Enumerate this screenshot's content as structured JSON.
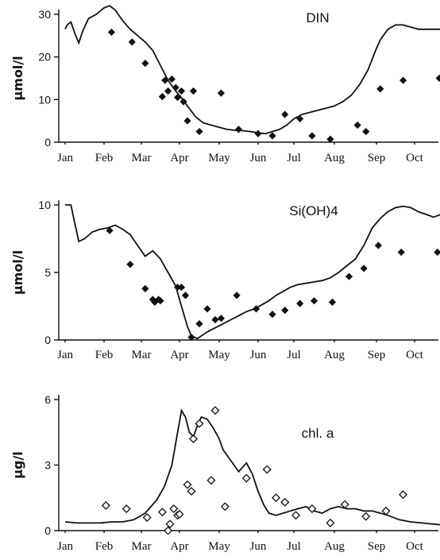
{
  "chart_data": [
    {
      "type": "line",
      "title": "DIN",
      "ylabel": "µmol/l",
      "ylim": [
        0,
        30
      ],
      "yticks": [
        0,
        10,
        20,
        30
      ],
      "months": [
        "Jan",
        "Feb",
        "Mar",
        "Apr",
        "May",
        "Jun",
        "Jul",
        "Aug",
        "Sep",
        "Oct"
      ],
      "xlim": [
        0,
        10.2
      ],
      "marker": "filled-diamond",
      "series": [
        {
          "kind": "model",
          "x": [
            0,
            0.05,
            0.15,
            0.25,
            0.35,
            0.45,
            0.6,
            0.8,
            1.0,
            1.15,
            1.3,
            1.5,
            1.7,
            1.9,
            2.1,
            2.3,
            2.5,
            2.7,
            2.9,
            3.0,
            3.2,
            3.4,
            3.6,
            3.8,
            4.0,
            4.2,
            4.4,
            4.6,
            4.8,
            5.0,
            5.2,
            5.4,
            5.6,
            5.8,
            6.0,
            6.2,
            6.4,
            6.6,
            6.8,
            7.0,
            7.2,
            7.4,
            7.6,
            7.8,
            8.0,
            8.1,
            8.3,
            8.5,
            8.7,
            8.9,
            9.1,
            9.3,
            9.5,
            9.7,
            9.9,
            10.05,
            10.2
          ],
          "y": [
            26.5,
            27.5,
            28.2,
            25.5,
            23.3,
            26.0,
            29.0,
            30.0,
            31.5,
            32.0,
            31.0,
            28.5,
            26.5,
            25.0,
            23.5,
            21.5,
            18.0,
            14.5,
            12.0,
            11.0,
            8.5,
            6.0,
            4.5,
            4.0,
            3.5,
            3.0,
            2.8,
            2.7,
            2.5,
            2.2,
            2.0,
            2.5,
            3.0,
            4.0,
            5.5,
            6.5,
            7.0,
            7.5,
            8.0,
            8.5,
            9.5,
            11.0,
            13.5,
            17.0,
            22.0,
            24.0,
            26.5,
            27.5,
            27.5,
            27.0,
            26.5,
            26.5,
            26.5,
            26.5,
            26.0,
            26.5,
            25.0
          ]
        },
        {
          "kind": "observed",
          "x": [
            1.2,
            1.75,
            2.1,
            2.55,
            2.62,
            2.7,
            2.8,
            2.9,
            2.95,
            3.05,
            3.1,
            3.2,
            3.35,
            3.5,
            4.05,
            4.5,
            5.0,
            5.4,
            5.75,
            6.15,
            6.45,
            6.9,
            7.55,
            7.75,
            8.1,
            8.7,
            9.65
          ],
          "y": [
            25.8,
            23.5,
            18.5,
            10.7,
            14.5,
            12.0,
            14.8,
            12.8,
            10.5,
            12.0,
            9.5,
            5.0,
            12.0,
            2.5,
            11.5,
            3.0,
            2.0,
            1.5,
            6.5,
            5.5,
            1.5,
            0.7,
            4.0,
            2.5,
            12.5,
            14.5,
            15.0
          ]
        }
      ]
    },
    {
      "type": "line",
      "title": "Si(OH)4",
      "ylabel": "µmol/l",
      "ylim": [
        0,
        10
      ],
      "yticks": [
        0,
        5,
        10
      ],
      "months": [
        "Jan",
        "Feb",
        "Mar",
        "Apr",
        "May",
        "Jun",
        "Jul",
        "Aug",
        "Sep",
        "Oct"
      ],
      "xlim": [
        0,
        10.2
      ],
      "marker": "filled-diamond",
      "series": [
        {
          "kind": "model",
          "x": [
            0,
            0.05,
            0.1,
            0.15,
            0.2,
            0.35,
            0.5,
            0.7,
            0.9,
            1.1,
            1.3,
            1.5,
            1.7,
            1.9,
            2.1,
            2.3,
            2.5,
            2.7,
            2.9,
            3.0,
            3.1,
            3.2,
            3.3,
            3.45,
            3.55,
            3.7,
            3.9,
            4.1,
            4.3,
            4.5,
            4.7,
            4.9,
            5.1,
            5.3,
            5.5,
            5.7,
            5.9,
            6.1,
            6.3,
            6.5,
            6.7,
            6.9,
            7.1,
            7.3,
            7.5,
            7.7,
            7.9,
            8.1,
            8.3,
            8.5,
            8.7,
            8.9,
            9.1,
            9.3,
            9.5,
            9.7,
            9.9,
            10.05,
            10.2
          ],
          "y": [
            10.0,
            10.0,
            10.0,
            10.0,
            9.3,
            7.3,
            7.5,
            8.0,
            8.2,
            8.3,
            8.5,
            8.2,
            7.8,
            7.0,
            6.2,
            6.6,
            6.0,
            5.0,
            4.0,
            3.0,
            2.0,
            1.0,
            0.3,
            0.1,
            0.3,
            0.6,
            0.9,
            1.2,
            1.5,
            1.8,
            2.1,
            2.3,
            2.6,
            2.9,
            3.3,
            3.6,
            3.9,
            4.1,
            4.2,
            4.3,
            4.4,
            4.6,
            5.0,
            5.5,
            6.0,
            7.0,
            8.3,
            9.0,
            9.5,
            9.8,
            9.9,
            9.8,
            9.5,
            9.3,
            9.1,
            9.3,
            9.3,
            9.5,
            9.8
          ]
        },
        {
          "kind": "observed",
          "x": [
            1.15,
            1.7,
            2.1,
            2.3,
            2.35,
            2.45,
            2.5,
            2.95,
            3.05,
            3.15,
            3.3,
            3.5,
            3.7,
            3.9,
            4.05,
            4.45,
            4.95,
            5.4,
            5.75,
            6.15,
            6.5,
            6.95,
            7.35,
            7.7,
            8.05,
            8.65,
            9.6
          ],
          "y": [
            8.1,
            5.6,
            3.8,
            3.0,
            2.8,
            3.0,
            2.9,
            3.9,
            3.9,
            3.3,
            0.2,
            1.2,
            2.3,
            1.5,
            1.6,
            3.3,
            2.3,
            1.9,
            2.2,
            2.7,
            2.9,
            2.8,
            4.7,
            5.3,
            7.0,
            6.5,
            6.5
          ]
        }
      ]
    },
    {
      "type": "line",
      "title": "chl. a",
      "ylabel": "µg/l",
      "ylim": [
        0,
        6
      ],
      "yticks": [
        0,
        3,
        6
      ],
      "months": [
        "Jan",
        "Feb",
        "Mar",
        "Apr",
        "May",
        "Jun",
        "Jul",
        "Aug",
        "Sep",
        "Oct"
      ],
      "xlim": [
        0,
        10.2
      ],
      "marker": "open-diamond",
      "series": [
        {
          "kind": "model",
          "x": [
            0,
            0.3,
            0.6,
            0.9,
            1.2,
            1.5,
            1.8,
            2.1,
            2.4,
            2.6,
            2.8,
            2.95,
            3.05,
            3.15,
            3.25,
            3.35,
            3.45,
            3.55,
            3.7,
            3.85,
            4.0,
            4.1,
            4.3,
            4.5,
            4.7,
            4.85,
            5.0,
            5.15,
            5.3,
            5.5,
            5.7,
            5.9,
            6.1,
            6.3,
            6.5,
            6.7,
            6.9,
            7.1,
            7.3,
            7.5,
            7.7,
            7.9,
            8.1,
            8.3,
            8.6,
            8.9,
            9.2,
            9.5,
            9.8,
            10.2
          ],
          "y": [
            0.4,
            0.35,
            0.35,
            0.35,
            0.4,
            0.4,
            0.5,
            0.8,
            1.4,
            2.0,
            3.0,
            4.5,
            5.5,
            5.2,
            4.5,
            4.3,
            4.8,
            5.2,
            5.1,
            4.7,
            4.2,
            3.7,
            3.2,
            2.7,
            3.1,
            2.6,
            1.8,
            1.2,
            0.8,
            0.7,
            0.8,
            0.9,
            1.0,
            1.1,
            0.9,
            0.8,
            1.0,
            1.1,
            1.0,
            1.0,
            0.9,
            0.9,
            0.8,
            0.7,
            0.5,
            0.4,
            0.35,
            0.3,
            0.25,
            0.2
          ]
        },
        {
          "kind": "observed",
          "x": [
            1.05,
            1.6,
            2.15,
            2.55,
            2.7,
            2.75,
            2.85,
            2.95,
            3.0,
            3.2,
            3.3,
            3.35,
            3.5,
            3.8,
            3.9,
            4.15,
            4.7,
            5.25,
            5.5,
            5.75,
            6.05,
            6.45,
            6.9,
            7.25,
            7.75,
            8.25,
            8.7,
            9.8
          ],
          "y": [
            1.15,
            1.0,
            0.6,
            0.85,
            0.0,
            0.3,
            1.0,
            0.7,
            0.75,
            2.1,
            1.8,
            4.2,
            4.9,
            2.3,
            5.5,
            1.1,
            2.4,
            2.8,
            1.5,
            1.3,
            0.7,
            1.0,
            0.35,
            1.2,
            0.65,
            0.9,
            1.65,
            0.25
          ]
        }
      ]
    }
  ]
}
